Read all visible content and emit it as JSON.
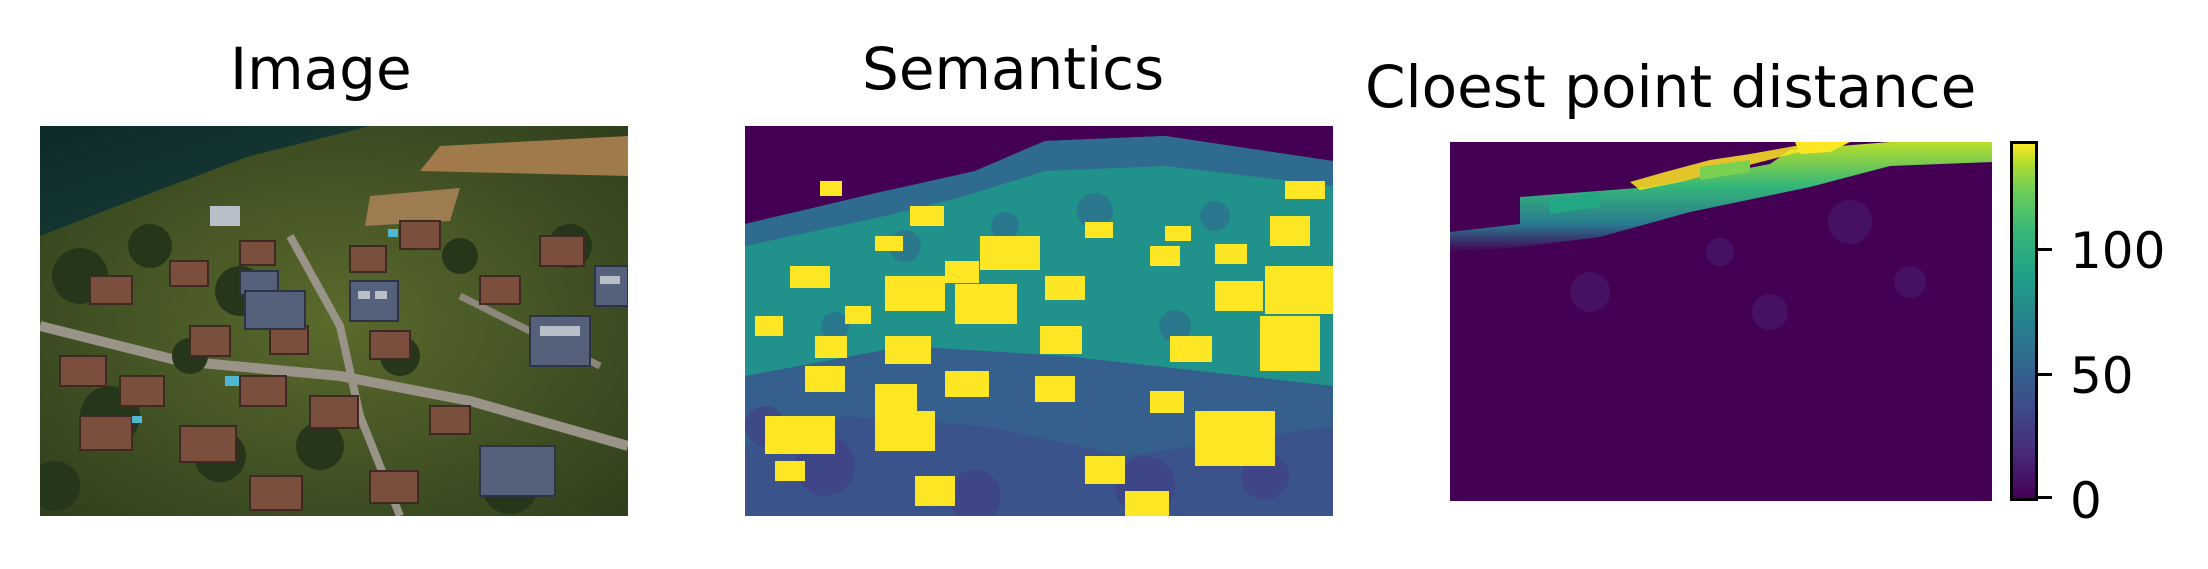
{
  "panels": [
    {
      "title": "Image"
    },
    {
      "title": "Semantics"
    },
    {
      "title": "Cloest point distance"
    }
  ],
  "colorbar": {
    "colormap": "viridis",
    "ticks": [
      "0",
      "50",
      "100"
    ]
  },
  "colors": {
    "viridis_dark": "#440154",
    "viridis_blue": "#3b528b",
    "viridis_teal": "#21918c",
    "viridis_green": "#5ec962",
    "viridis_yellow": "#fde725"
  }
}
